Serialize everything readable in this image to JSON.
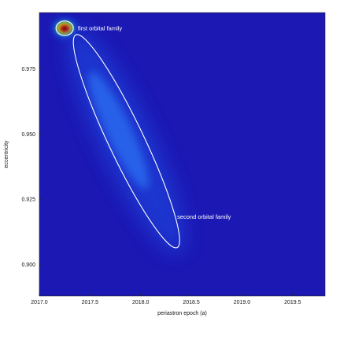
{
  "chart_data": {
    "type": "heatmap",
    "title": "",
    "xlabel": "periastron epoch (a)",
    "ylabel": "eccentricity",
    "xlim": [
      2017.0,
      2019.82
    ],
    "ylim": [
      0.888,
      0.9965
    ],
    "x_ticks": [
      {
        "value": 2017.0,
        "label": "2017.0"
      },
      {
        "value": 2017.5,
        "label": "2017.5"
      },
      {
        "value": 2018.0,
        "label": "2018.0"
      },
      {
        "value": 2018.5,
        "label": "2018.5"
      },
      {
        "value": 2019.0,
        "label": "2019.0"
      },
      {
        "value": 2019.5,
        "label": "2019.5"
      }
    ],
    "y_ticks": [
      {
        "value": 0.9,
        "label": "0.900"
      },
      {
        "value": 0.925,
        "label": "0.925"
      },
      {
        "value": 0.95,
        "label": "0.950"
      },
      {
        "value": 0.975,
        "label": "0.975"
      }
    ],
    "background_color": "#1c18b4",
    "contour_color": "#ffffff",
    "families": [
      {
        "name": "first orbital family",
        "center_x": 2017.25,
        "center_y": 0.9905,
        "semi_major": 0.0026,
        "semi_minor": 0.0009,
        "peak_density": "high",
        "label_x": 2017.38,
        "label_y": 0.9905
      },
      {
        "name": "second orbital family",
        "center_x": 2017.86,
        "center_y": 0.951,
        "semi_major": 0.0455,
        "semi_minor": 0.0017,
        "peak_density": "low",
        "label_x": 2018.36,
        "label_y": 0.9183
      }
    ],
    "grid": false,
    "legend": "none"
  }
}
